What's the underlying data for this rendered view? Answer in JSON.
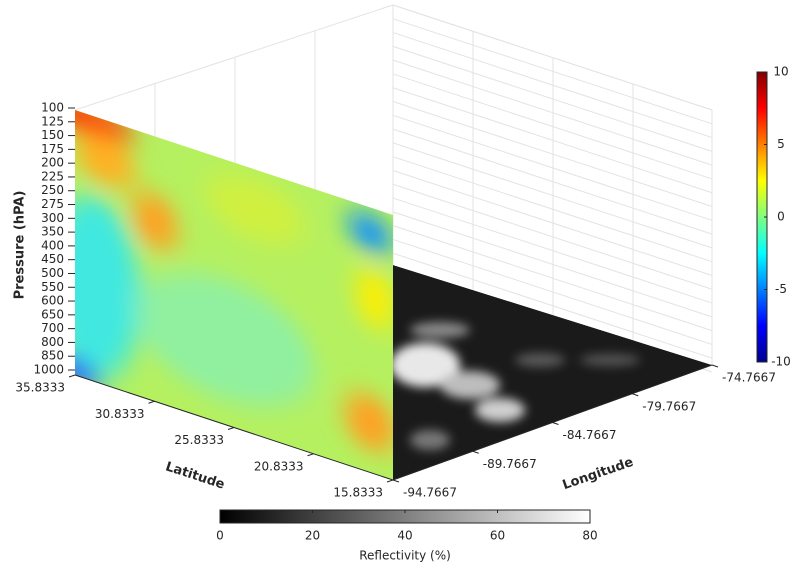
{
  "chart_data": {
    "type": "slice3d",
    "zlabel": "Pressure (hPA)",
    "pressure_levels": [
      100,
      125,
      150,
      175,
      200,
      225,
      250,
      275,
      300,
      350,
      400,
      450,
      500,
      550,
      600,
      650,
      700,
      800,
      850,
      1000
    ],
    "xlabel": "Latitude",
    "xlim": [
      35.8333,
      15.8333
    ],
    "xticks": [
      35.8333,
      30.8333,
      25.8333,
      20.8333,
      15.8333
    ],
    "ylabel": "Longitude",
    "ylim": [
      -94.7667,
      -74.7667
    ],
    "yticks": [
      -94.7667,
      -89.7667,
      -84.7667,
      -79.7667,
      -74.7667
    ],
    "colorbar": {
      "lim": [
        -10,
        10
      ],
      "ticks": [
        -10,
        -5,
        0,
        5,
        10
      ],
      "colormap": "jet"
    },
    "floor_colorbar": {
      "label": "Reflectivity (%)",
      "lim": [
        0,
        80
      ],
      "ticks": [
        0,
        20,
        40,
        60,
        80
      ],
      "colormap": "gray"
    }
  }
}
